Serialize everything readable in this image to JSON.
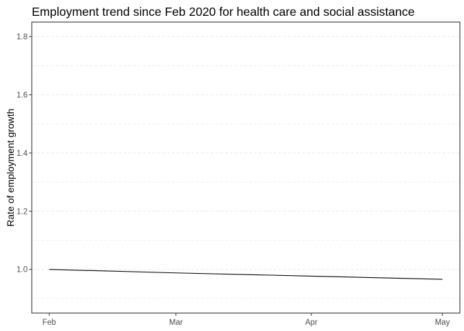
{
  "chart_data": {
    "type": "line",
    "title": "Employment trend since Feb 2020 for health care and social assistance",
    "xlabel": "",
    "ylabel": "Rate of employment growth",
    "x": [
      "2020-02-01",
      "2020-03-01",
      "2020-04-01",
      "2020-05-01"
    ],
    "x_ticks": [
      {
        "label": "Feb",
        "date": "2020-02-01"
      },
      {
        "label": "Mar",
        "date": "2020-03-01"
      },
      {
        "label": "Apr",
        "date": "2020-04-01"
      },
      {
        "label": "May",
        "date": "2020-05-01"
      }
    ],
    "y_ticks": [
      1.0,
      1.2,
      1.4,
      1.6,
      1.8
    ],
    "y_tick_labels": [
      "1.0",
      "1.2",
      "1.4",
      "1.6",
      "1.8"
    ],
    "ylim": [
      0.85,
      1.85
    ],
    "xlim": [
      "2020-01-28",
      "2020-05-05"
    ],
    "series": [
      {
        "values": [
          1.0,
          0.988,
          0.977,
          0.966
        ]
      }
    ],
    "grid": true,
    "legend": "none",
    "colors": {
      "line": "#000000",
      "grid": "#ebebeb",
      "border": "#333333"
    }
  }
}
